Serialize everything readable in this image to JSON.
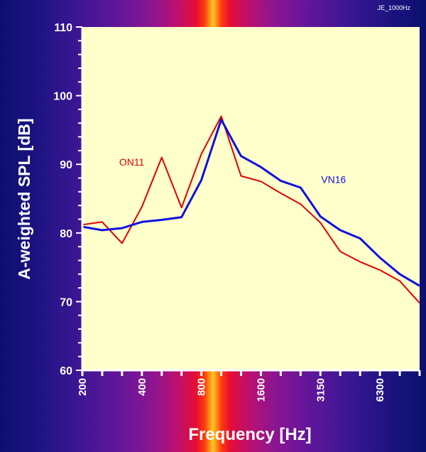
{
  "chart_data": {
    "type": "line",
    "tag": "JE_1000Hz",
    "xlabel": "Frequency [Hz]",
    "ylabel": "A-weighted SPL [dB]",
    "ylim": [
      60,
      110
    ],
    "yticks": [
      60,
      70,
      80,
      90,
      100,
      110
    ],
    "x": [
      "200",
      "250",
      "315",
      "400",
      "500",
      "630",
      "800",
      "1000",
      "1250",
      "1600",
      "2000",
      "2500",
      "3150",
      "4000",
      "5000",
      "6300",
      "8000",
      "10000"
    ],
    "xtick_labels": [
      "200",
      "400",
      "800",
      "1600",
      "3150",
      "6300"
    ],
    "grid": false,
    "plot_background": "#ffffcc",
    "series": [
      {
        "name": "ON11",
        "color": "#e00000",
        "values": [
          81.2,
          81.6,
          78.5,
          83.8,
          91.0,
          83.7,
          91.5,
          97.0,
          88.3,
          87.5,
          85.8,
          84.2,
          81.5,
          77.3,
          75.8,
          74.6,
          73.0,
          69.8
        ]
      },
      {
        "name": "VN16",
        "color": "#1010e0",
        "values": [
          80.9,
          80.4,
          80.7,
          81.6,
          81.9,
          82.3,
          87.7,
          96.5,
          91.2,
          89.6,
          87.6,
          86.6,
          82.4,
          80.4,
          79.2,
          76.4,
          74.0,
          72.3
        ]
      }
    ]
  }
}
